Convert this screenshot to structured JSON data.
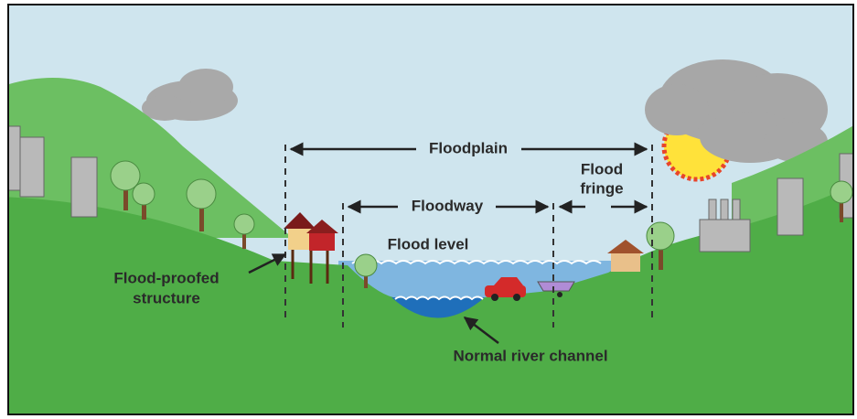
{
  "labels": {
    "floodplain": "Floodplain",
    "floodway": "Floodway",
    "flood_fringe": [
      "Flood",
      "fringe"
    ],
    "flood_level": "Flood level",
    "flood_proofed_structure": [
      "Flood-proofed",
      "structure"
    ],
    "normal_river_channel": "Normal river channel"
  }
}
